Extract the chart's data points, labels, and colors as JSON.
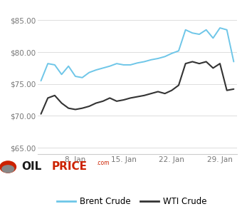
{
  "brent": [
    75.5,
    78.2,
    78.0,
    76.5,
    77.8,
    76.2,
    76.0,
    76.8,
    77.2,
    77.5,
    77.8,
    78.2,
    78.0,
    78.0,
    78.3,
    78.5,
    78.8,
    79.0,
    79.3,
    79.8,
    80.2,
    83.5,
    83.0,
    82.8,
    83.5,
    82.2,
    83.8,
    83.5,
    78.5
  ],
  "wti": [
    70.3,
    72.8,
    73.2,
    72.0,
    71.2,
    71.0,
    71.2,
    71.5,
    72.0,
    72.3,
    72.8,
    72.3,
    72.5,
    72.8,
    73.0,
    73.2,
    73.5,
    73.8,
    73.5,
    74.0,
    74.8,
    78.2,
    78.5,
    78.2,
    78.5,
    77.5,
    78.2,
    74.0,
    74.2
  ],
  "x_ticks_pos": [
    5,
    12,
    19,
    26
  ],
  "x_tick_labels": [
    "8. Jan",
    "15. Jan",
    "22. Jan",
    "29. Jan"
  ],
  "y_ticks": [
    65.0,
    70.0,
    75.0,
    80.0,
    85.0
  ],
  "y_tick_labels": [
    "$65.00",
    "$70.00",
    "$75.00",
    "$80.00",
    "$85.00"
  ],
  "ylim": [
    64.0,
    86.5
  ],
  "xlim": [
    -0.5,
    28.5
  ],
  "brent_color": "#6ec6e8",
  "wti_color": "#333333",
  "background_color": "#ffffff",
  "grid_color": "#dddddd",
  "legend_brent": "Brent Crude",
  "legend_wti": "WTI Crude",
  "tick_fontsize": 7.5,
  "tick_color": "#777777",
  "legend_fontsize": 8.5
}
